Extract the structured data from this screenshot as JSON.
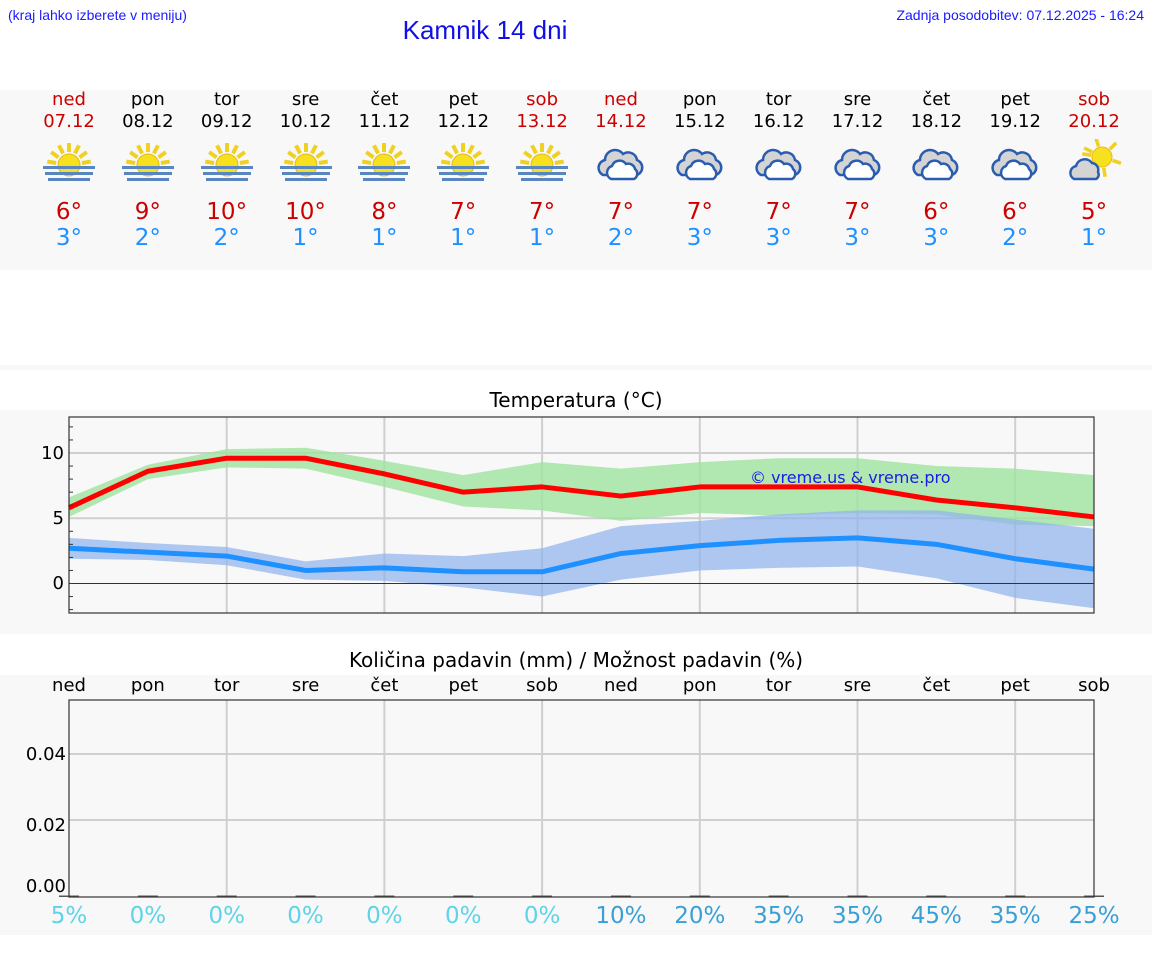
{
  "header": {
    "hint": "(kraj lahko izberete v meniju)",
    "title": "Kamnik 14 dni",
    "updated": "Zadnja posodobitev: 07.12.2025 - 16:24"
  },
  "days": [
    {
      "name": "ned",
      "date": "07.12",
      "icon": "sun-fog-icon",
      "tmax": "6°",
      "tmin": "3°",
      "weekend": true,
      "precip_pct": "5%"
    },
    {
      "name": "pon",
      "date": "08.12",
      "icon": "sun-fog-icon",
      "tmax": "9°",
      "tmin": "2°",
      "weekend": false,
      "precip_pct": "0%"
    },
    {
      "name": "tor",
      "date": "09.12",
      "icon": "sun-fog-icon",
      "tmax": "10°",
      "tmin": "2°",
      "weekend": false,
      "precip_pct": "0%"
    },
    {
      "name": "sre",
      "date": "10.12",
      "icon": "sun-fog-icon",
      "tmax": "10°",
      "tmin": "1°",
      "weekend": false,
      "precip_pct": "0%"
    },
    {
      "name": "čet",
      "date": "11.12",
      "icon": "sun-fog-icon",
      "tmax": "8°",
      "tmin": "1°",
      "weekend": false,
      "precip_pct": "0%"
    },
    {
      "name": "pet",
      "date": "12.12",
      "icon": "sun-fog-icon",
      "tmax": "7°",
      "tmin": "1°",
      "weekend": false,
      "precip_pct": "0%"
    },
    {
      "name": "sob",
      "date": "13.12",
      "icon": "sun-fog-icon",
      "tmax": "7°",
      "tmin": "1°",
      "weekend": true,
      "precip_pct": "0%"
    },
    {
      "name": "ned",
      "date": "14.12",
      "icon": "cloudy-icon",
      "tmax": "7°",
      "tmin": "2°",
      "weekend": true,
      "precip_pct": "10%"
    },
    {
      "name": "pon",
      "date": "15.12",
      "icon": "cloudy-icon",
      "tmax": "7°",
      "tmin": "3°",
      "weekend": false,
      "precip_pct": "20%"
    },
    {
      "name": "tor",
      "date": "16.12",
      "icon": "cloudy-icon",
      "tmax": "7°",
      "tmin": "3°",
      "weekend": false,
      "precip_pct": "35%"
    },
    {
      "name": "sre",
      "date": "17.12",
      "icon": "cloudy-icon",
      "tmax": "7°",
      "tmin": "3°",
      "weekend": false,
      "precip_pct": "35%"
    },
    {
      "name": "čet",
      "date": "18.12",
      "icon": "cloudy-icon",
      "tmax": "6°",
      "tmin": "3°",
      "weekend": false,
      "precip_pct": "45%"
    },
    {
      "name": "pet",
      "date": "19.12",
      "icon": "cloudy-icon",
      "tmax": "6°",
      "tmin": "2°",
      "weekend": false,
      "precip_pct": "35%"
    },
    {
      "name": "sob",
      "date": "20.12",
      "icon": "partly-cloudy-icon",
      "tmax": "5°",
      "tmin": "1°",
      "weekend": true,
      "precip_pct": "25%"
    }
  ],
  "colors": {
    "weekend": "#cc0000",
    "tmax_line": "#ff0000",
    "tmax_band": "#a8e6a8",
    "tmin_line": "#1e90ff",
    "tmin_band": "#a9c4f0",
    "pct_low": "#5fd3e8",
    "pct_high": "#3a9fd6",
    "link": "#1a1aff"
  },
  "chart_data": [
    {
      "type": "line",
      "title": "Temperatura (°C)",
      "xlabel": "",
      "ylabel": "",
      "ylim": [
        -2.3,
        12.8
      ],
      "yticks": [
        "0",
        "5",
        "10"
      ],
      "grid": true,
      "watermark": "© vreme.us & vreme.pro",
      "categories": [
        "07.12",
        "08.12",
        "09.12",
        "10.12",
        "11.12",
        "12.12",
        "13.12",
        "14.12",
        "15.12",
        "16.12",
        "17.12",
        "18.12",
        "19.12",
        "20.12"
      ],
      "series": [
        {
          "name": "max",
          "values": [
            5.8,
            8.6,
            9.6,
            9.6,
            8.4,
            7.0,
            7.4,
            6.7,
            7.4,
            7.4,
            7.4,
            6.4,
            5.8,
            5.1
          ]
        },
        {
          "name": "max_upper",
          "values": [
            6.6,
            9.1,
            10.3,
            10.4,
            9.4,
            8.3,
            9.3,
            8.8,
            9.3,
            9.6,
            9.6,
            9.0,
            8.8,
            8.3
          ]
        },
        {
          "name": "max_lower",
          "values": [
            5.1,
            8.0,
            8.9,
            8.8,
            7.4,
            5.9,
            5.6,
            4.8,
            5.4,
            5.2,
            5.4,
            5.3,
            4.5,
            4.4
          ]
        },
        {
          "name": "min",
          "values": [
            2.7,
            2.4,
            2.1,
            1.0,
            1.2,
            0.9,
            0.9,
            2.3,
            2.9,
            3.3,
            3.5,
            3.0,
            1.9,
            1.1
          ]
        },
        {
          "name": "min_upper",
          "values": [
            3.5,
            3.1,
            2.8,
            1.7,
            2.3,
            2.1,
            2.7,
            4.4,
            4.8,
            5.3,
            5.6,
            5.6,
            4.9,
            4.2
          ]
        },
        {
          "name": "min_lower",
          "values": [
            1.9,
            1.8,
            1.4,
            0.3,
            0.2,
            -0.3,
            -1.0,
            0.3,
            1.0,
            1.2,
            1.3,
            0.4,
            -1.1,
            -1.9
          ]
        }
      ]
    },
    {
      "type": "bar",
      "title": "Količina padavin (mm) / Možnost padavin (%)",
      "xlabel": "",
      "ylabel": "",
      "ylim": [
        -0.003,
        0.055
      ],
      "yticks": [
        "0.00",
        "0.02",
        "0.04"
      ],
      "grid": true,
      "categories": [
        "ned",
        "pon",
        "tor",
        "sre",
        "čet",
        "pet",
        "sob",
        "ned",
        "pon",
        "tor",
        "sre",
        "čet",
        "pet",
        "sob"
      ],
      "series": [
        {
          "name": "precipitation_mm",
          "values": [
            0,
            0,
            0,
            0,
            0,
            0,
            0,
            0,
            0,
            0,
            0,
            0,
            0,
            0
          ]
        },
        {
          "name": "precipitation_chance_pct",
          "values": [
            5,
            0,
            0,
            0,
            0,
            0,
            0,
            10,
            20,
            35,
            35,
            45,
            35,
            25
          ]
        }
      ]
    }
  ]
}
